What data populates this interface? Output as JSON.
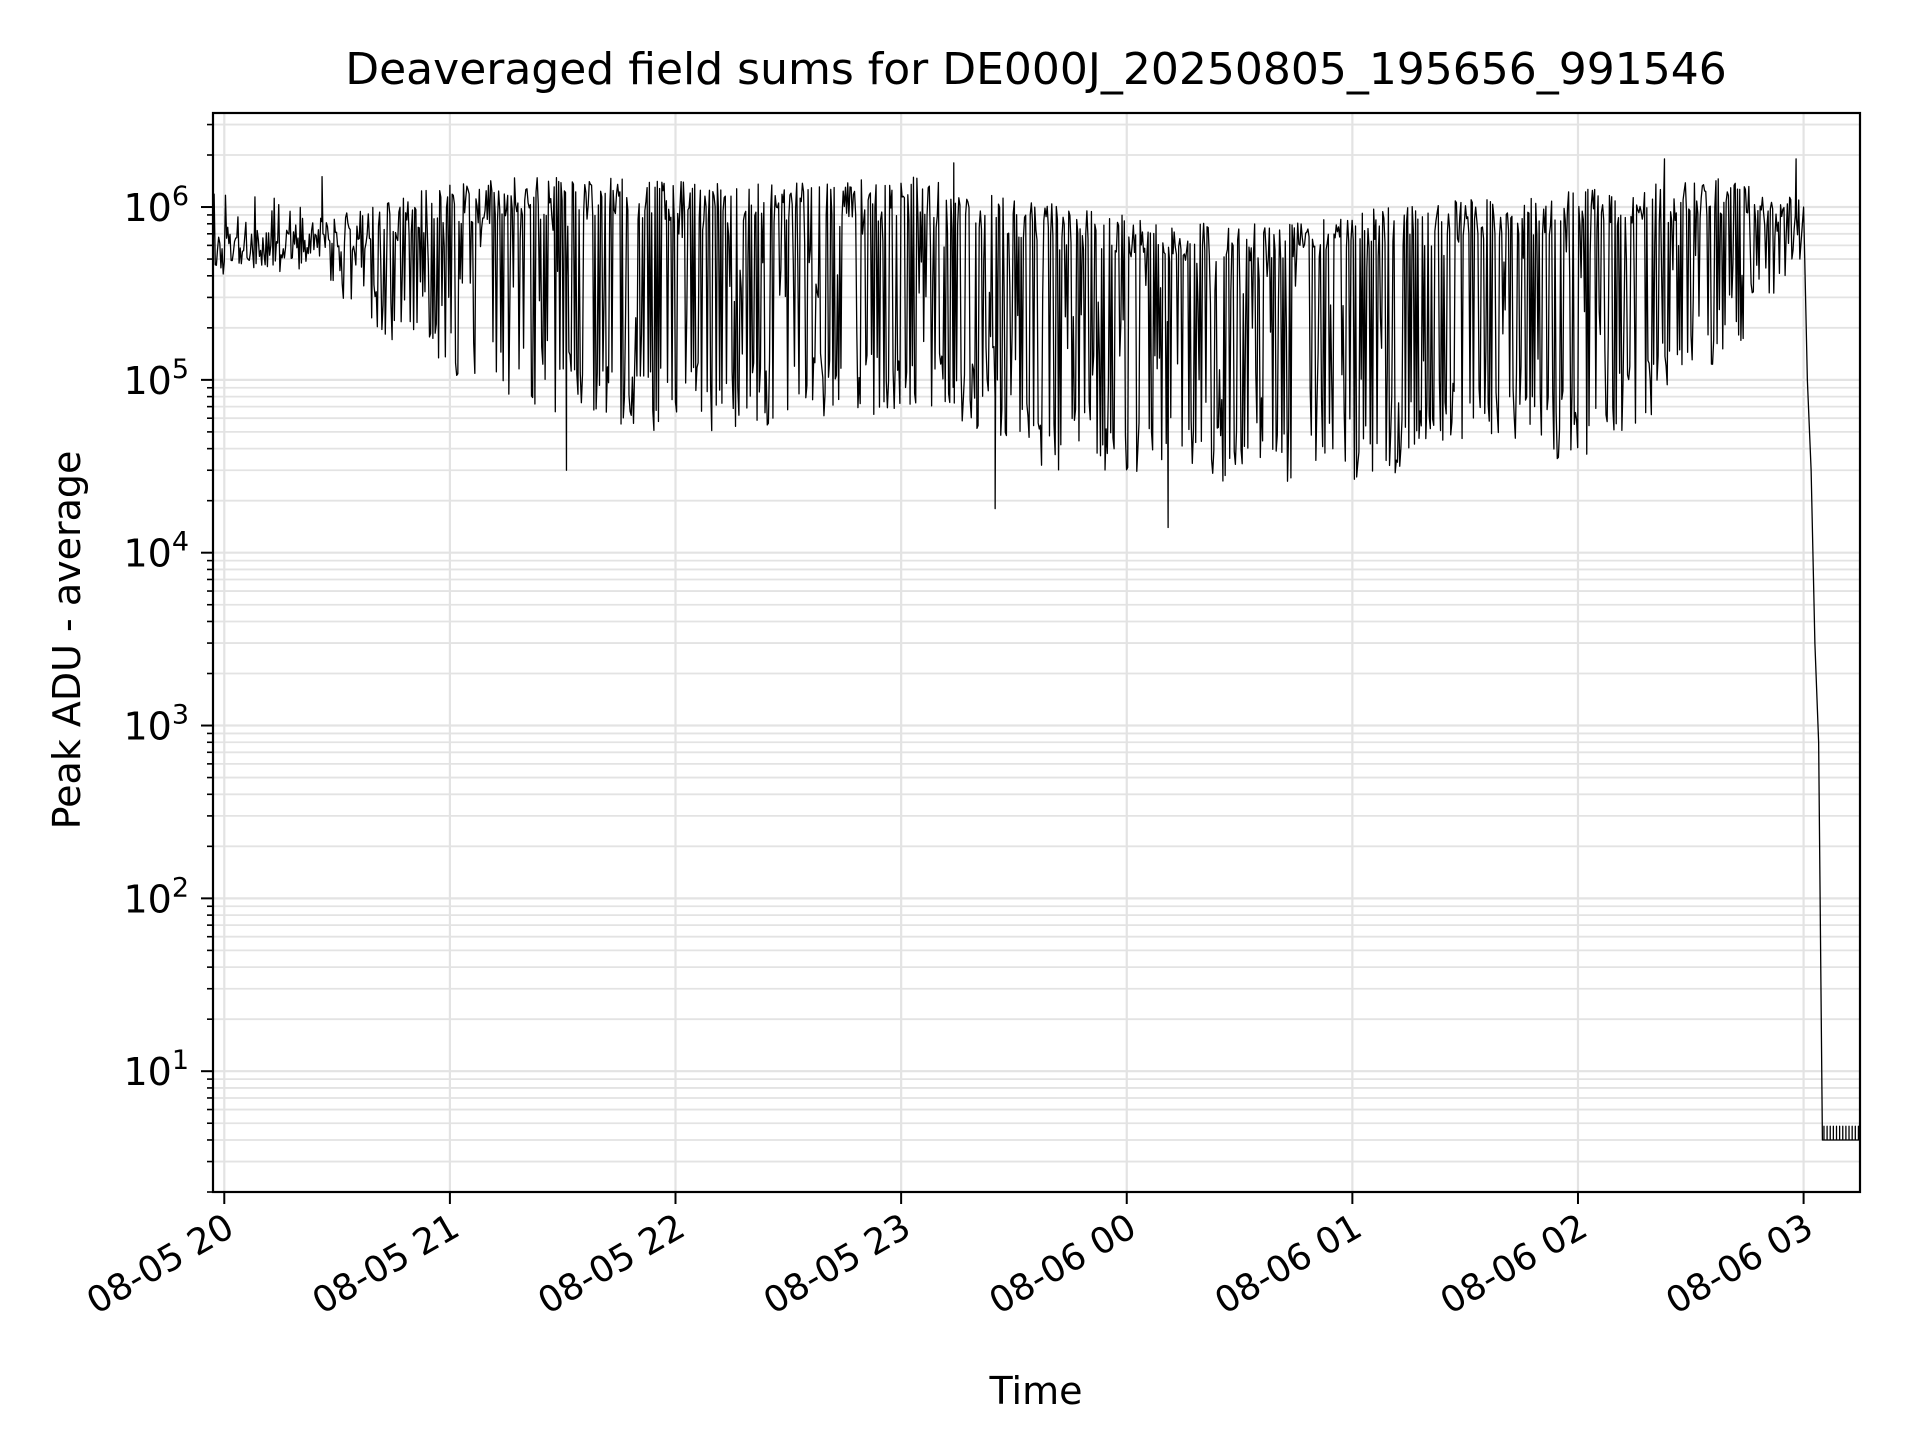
{
  "chart_data": {
    "type": "line",
    "title": "Deaveraged field sums for DE000J_20250805_195656_991546",
    "xlabel": "Time",
    "ylabel": "Peak ADU - average",
    "yscale": "log",
    "ylim": [
      2,
      3500000
    ],
    "xlim": [
      "2025-08-05 19:57",
      "2025-08-06 03:15"
    ],
    "grid": true,
    "grid_minor": true,
    "line_color": "#000000",
    "grid_color": "#e3e3e3",
    "x_ticks": [
      {
        "value": "2025-08-05 20:00",
        "label": "08-05 20"
      },
      {
        "value": "2025-08-05 21:00",
        "label": "08-05 21"
      },
      {
        "value": "2025-08-05 22:00",
        "label": "08-05 22"
      },
      {
        "value": "2025-08-05 23:00",
        "label": "08-05 23"
      },
      {
        "value": "2025-08-06 00:00",
        "label": "08-06 00"
      },
      {
        "value": "2025-08-06 01:00",
        "label": "08-06 01"
      },
      {
        "value": "2025-08-06 02:00",
        "label": "08-06 02"
      },
      {
        "value": "2025-08-06 03:00",
        "label": "08-06 03"
      }
    ],
    "y_ticks": [
      {
        "value": 10,
        "mant": "10",
        "exp": "1"
      },
      {
        "value": 100,
        "mant": "10",
        "exp": "2"
      },
      {
        "value": 1000,
        "mant": "10",
        "exp": "3"
      },
      {
        "value": 10000,
        "mant": "10",
        "exp": "4"
      },
      {
        "value": 100000,
        "mant": "10",
        "exp": "5"
      },
      {
        "value": 1000000,
        "mant": "10",
        "exp": "6"
      }
    ],
    "series": [
      {
        "envelope": {
          "x": [
            "2025-08-05 19:57",
            "2025-08-05 20:15",
            "2025-08-05 20:27",
            "2025-08-05 20:40",
            "2025-08-05 20:55",
            "2025-08-05 21:15",
            "2025-08-05 21:35",
            "2025-08-05 21:50",
            "2025-08-05 22:10",
            "2025-08-05 22:30",
            "2025-08-05 22:45",
            "2025-08-05 23:10",
            "2025-08-05 23:25",
            "2025-08-05 23:40",
            "2025-08-06 00:00",
            "2025-08-06 00:15",
            "2025-08-06 00:30",
            "2025-08-06 00:50",
            "2025-08-06 01:10",
            "2025-08-06 01:30",
            "2025-08-06 01:45",
            "2025-08-06 02:00",
            "2025-08-06 02:15",
            "2025-08-06 02:30",
            "2025-08-06 02:45",
            "2025-08-06 02:59"
          ],
          "upper": [
            700000,
            750000,
            900000,
            1000000,
            1300000,
            1500000,
            1500000,
            1450000,
            1400000,
            1400000,
            1450000,
            1500000,
            1200000,
            1050000,
            900000,
            850000,
            850000,
            900000,
            1000000,
            1100000,
            1150000,
            1250000,
            1350000,
            1450000,
            1500000,
            1100000
          ],
          "lower": [
            480000,
            450000,
            350000,
            200000,
            120000,
            80000,
            55000,
            50000,
            50000,
            55000,
            60000,
            70000,
            40000,
            30000,
            28000,
            25000,
            25000,
            25000,
            28000,
            40000,
            35000,
            35000,
            50000,
            90000,
            180000,
            500000
          ]
        },
        "spikes": [
          {
            "x": "2025-08-05 20:26",
            "y": 1500000
          },
          {
            "x": "2025-08-05 21:31",
            "y": 30000
          },
          {
            "x": "2025-08-05 23:14",
            "y": 1800000
          },
          {
            "x": "2025-08-05 23:25",
            "y": 18000
          },
          {
            "x": "2025-08-06 00:11",
            "y": 14000
          },
          {
            "x": "2025-08-06 02:23",
            "y": 1900000
          },
          {
            "x": "2025-08-06 02:58",
            "y": 1900000
          }
        ],
        "dropoff": {
          "x": [
            "2025-08-06 03:00",
            "2025-08-06 03:01",
            "2025-08-06 03:02",
            "2025-08-06 03:03",
            "2025-08-06 03:04",
            "2025-08-06 03:05",
            "2025-08-06 03:15"
          ],
          "y": [
            1000000,
            100000,
            30000,
            3000,
            800,
            4,
            4
          ]
        }
      }
    ]
  }
}
